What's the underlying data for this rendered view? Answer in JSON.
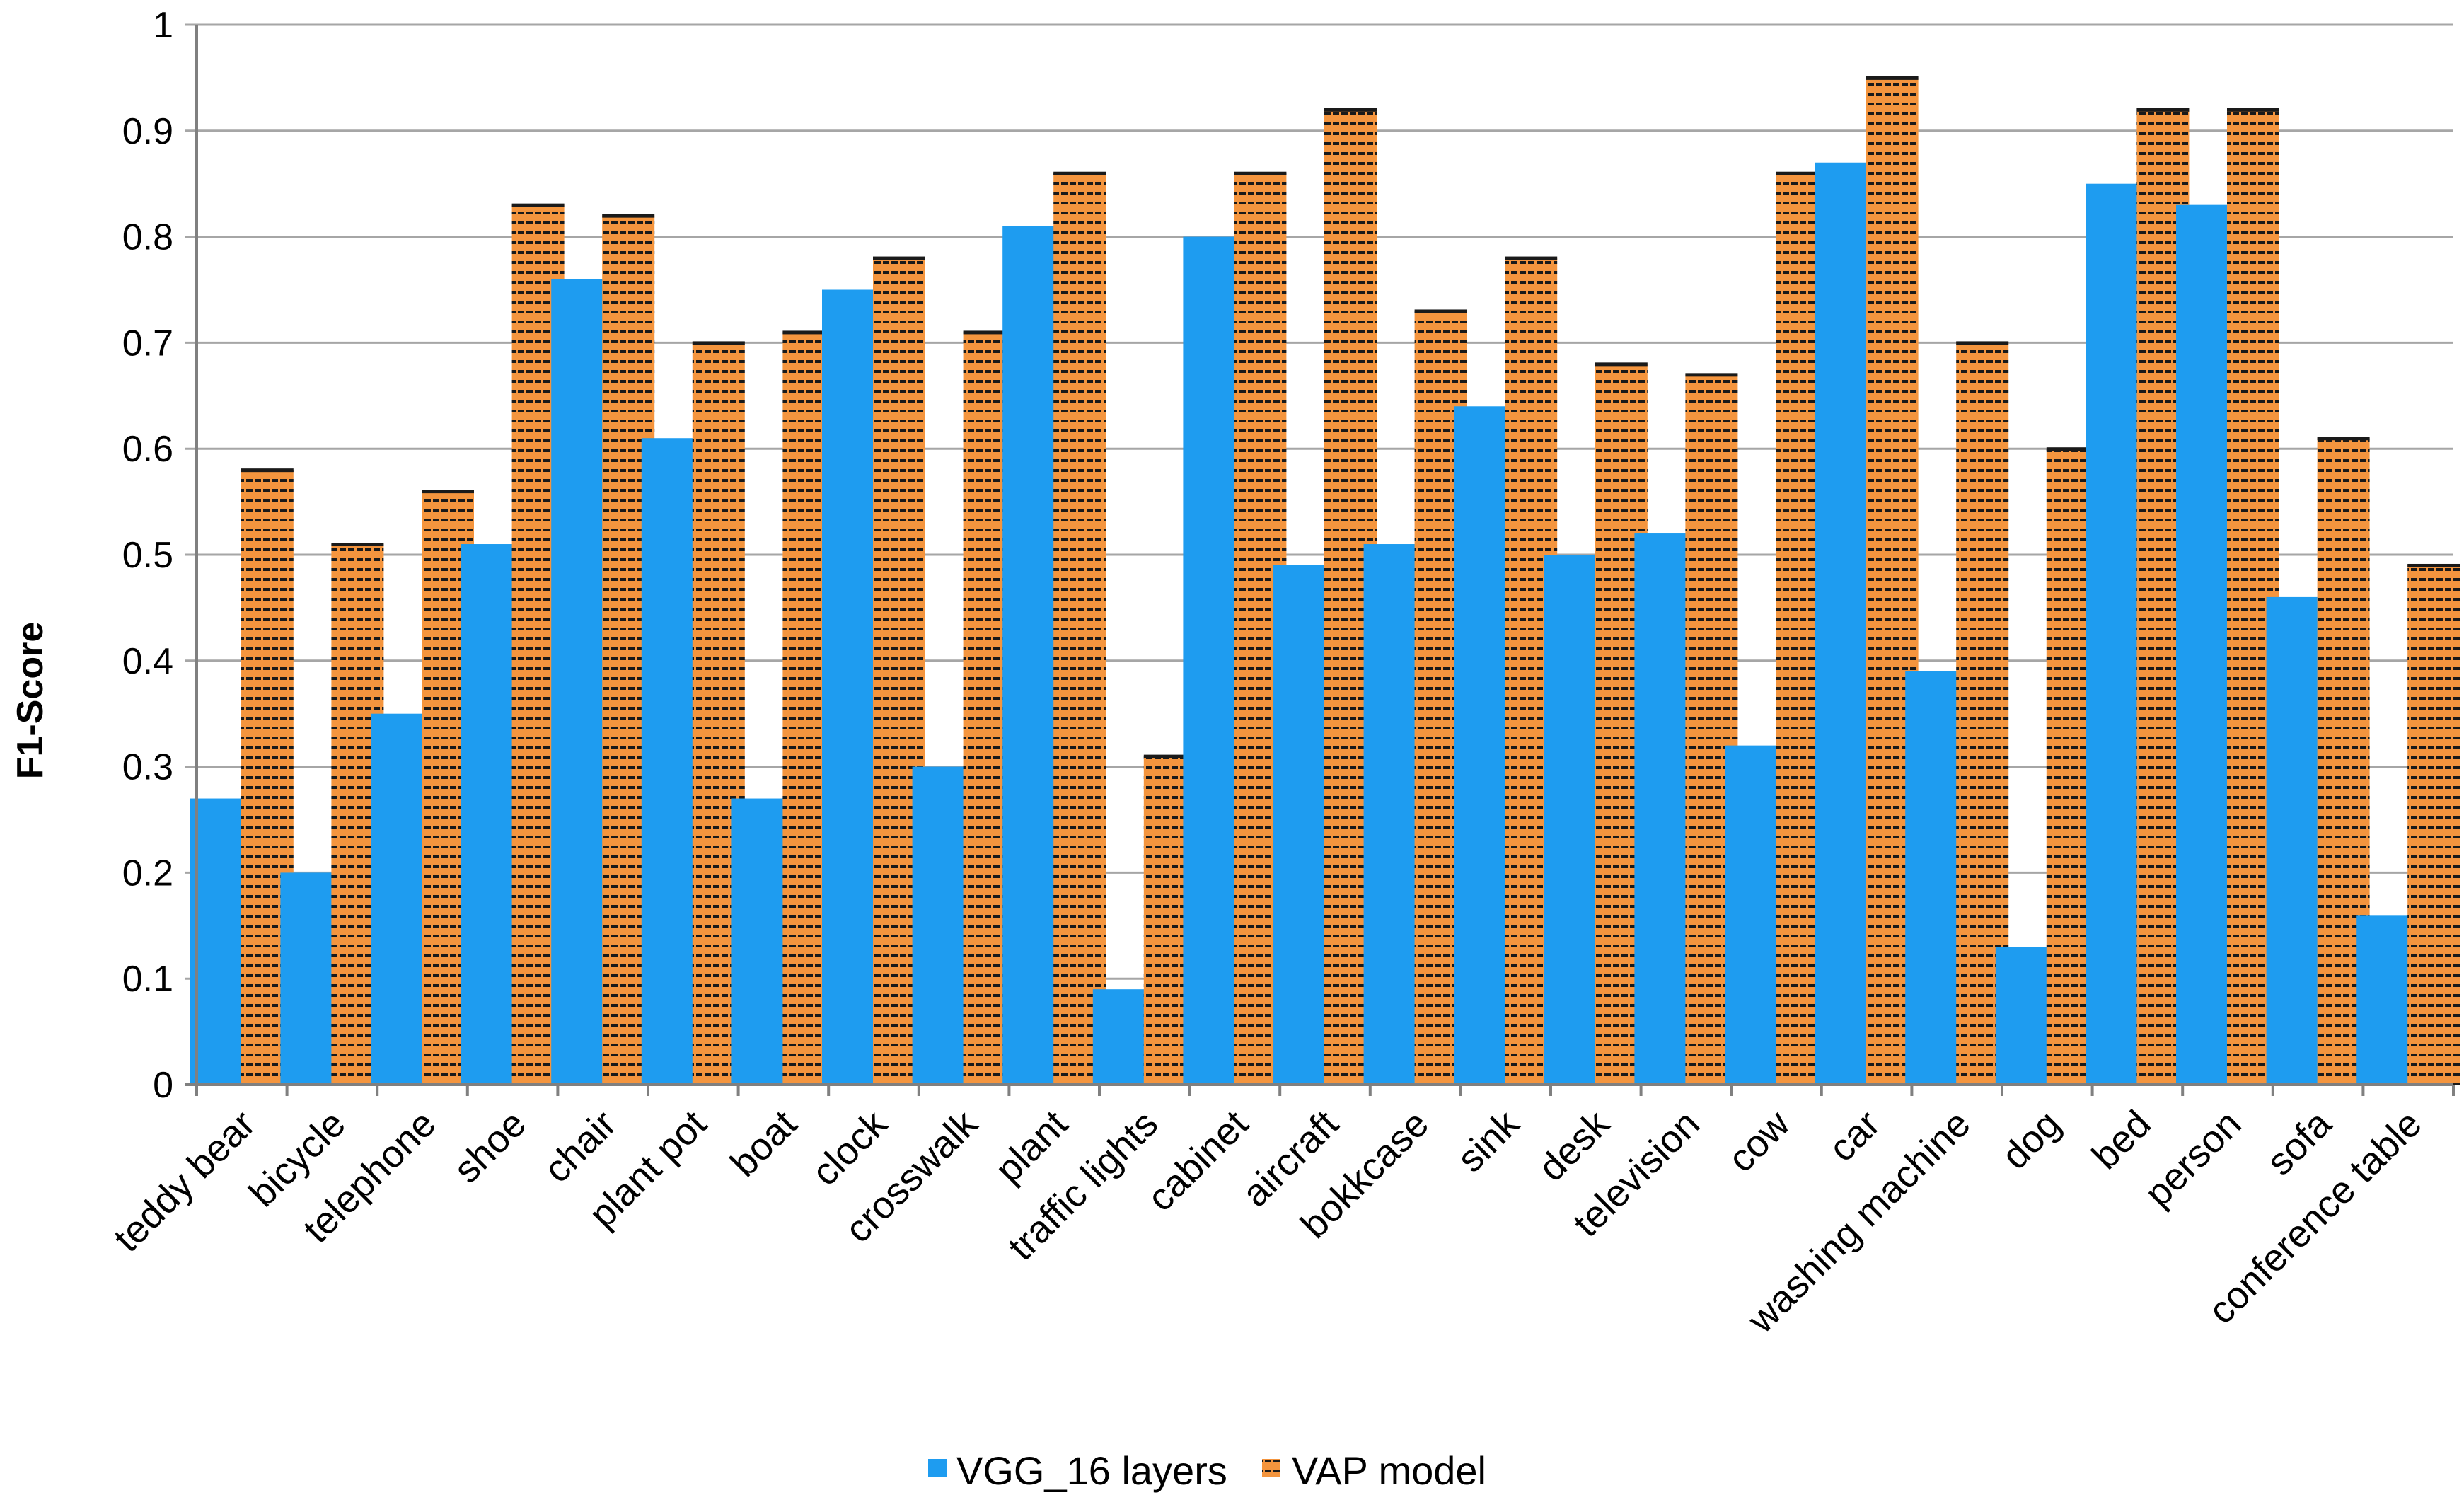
{
  "colors": {
    "vgg": "#1e9cf0",
    "vap": "#f4953e",
    "vap_stripe": "#1a1a1a",
    "grid": "#a6a6a6",
    "axis": "#808080"
  },
  "chart_data": {
    "type": "bar",
    "title": "",
    "xlabel": "",
    "ylabel": "F1-Score",
    "ylim": [
      0,
      1
    ],
    "yticks": [
      "0",
      "0.1",
      "0.2",
      "0.3",
      "0.4",
      "0.5",
      "0.6",
      "0.7",
      "0.8",
      "0.9",
      "1"
    ],
    "grid": true,
    "legend_position": "bottom",
    "categories": [
      "teddy bear",
      "bicycle",
      "telephone",
      "shoe",
      "chair",
      "plant pot",
      "boat",
      "clock",
      "crosswalk",
      "plant",
      "traffic lights",
      "cabinet",
      "aircraft",
      "bokkcase",
      "sink",
      "desk",
      "television",
      "cow",
      "car",
      "washing machine",
      "dog",
      "bed",
      "person",
      "sofa",
      "conference table"
    ],
    "series": [
      {
        "name": "VGG_16 layers",
        "values": [
          0.27,
          0.2,
          0.35,
          0.51,
          0.76,
          0.61,
          0.27,
          0.75,
          0.3,
          0.81,
          0.09,
          0.8,
          0.49,
          0.51,
          0.64,
          0.5,
          0.52,
          0.32,
          0.87,
          0.39,
          0.13,
          0.85,
          0.83,
          0.46,
          0.16
        ]
      },
      {
        "name": "VAP model",
        "values": [
          0.58,
          0.51,
          0.56,
          0.83,
          0.82,
          0.7,
          0.71,
          0.78,
          0.71,
          0.86,
          0.31,
          0.86,
          0.92,
          0.73,
          0.78,
          0.68,
          0.67,
          0.86,
          0.95,
          0.7,
          0.6,
          0.92,
          0.92,
          0.61,
          0.49
        ]
      }
    ]
  }
}
